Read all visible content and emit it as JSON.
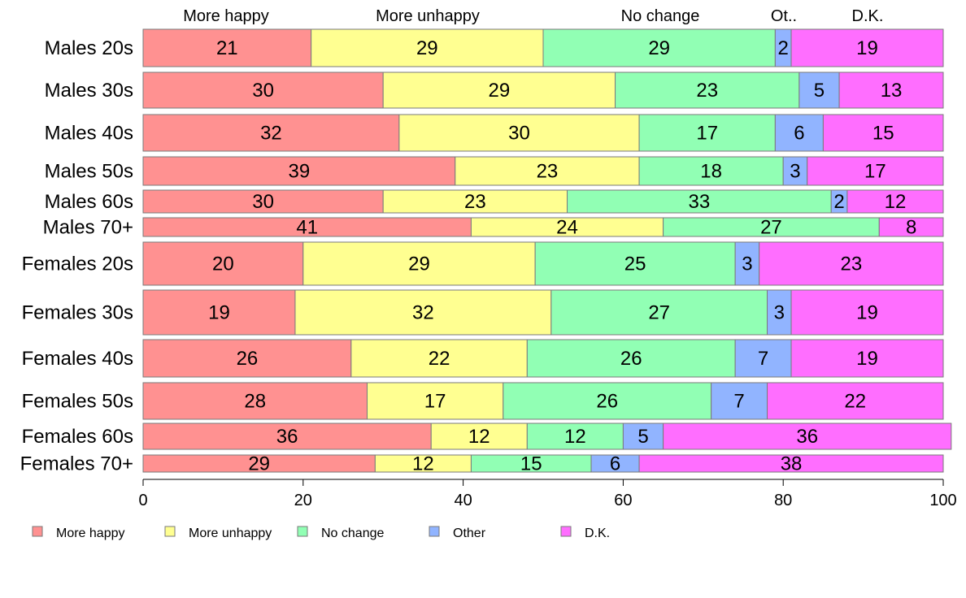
{
  "chart_data": {
    "type": "bar",
    "orientation": "horizontal",
    "stacked": true,
    "normalized_to": 100,
    "categories": [
      "Males 20s",
      "Males 30s",
      "Males 40s",
      "Males 50s",
      "Males 60s",
      "Males 70+",
      "Females 20s",
      "Females 30s",
      "Females 40s",
      "Females 50s",
      "Females 60s",
      "Females 70+"
    ],
    "series": [
      {
        "name": "More happy",
        "color": "#ff9191",
        "values": [
          21,
          30,
          32,
          39,
          30,
          41,
          20,
          19,
          26,
          28,
          36,
          29
        ],
        "labels": [
          "21",
          "30",
          "32",
          "39",
          "30",
          "41",
          "20",
          "19",
          "26",
          "28",
          "36",
          "29"
        ]
      },
      {
        "name": "More unhappy",
        "color": "#ffff91",
        "values": [
          29,
          29,
          30,
          23,
          23,
          24,
          29,
          32,
          22,
          17,
          12,
          12
        ],
        "labels": [
          "29",
          "29",
          "30",
          "23",
          "23",
          "24",
          "29",
          "32",
          "22",
          "17",
          "12",
          "12"
        ]
      },
      {
        "name": "No change",
        "color": "#91ffb4",
        "values": [
          29,
          23,
          17,
          18,
          33,
          27,
          25,
          27,
          26,
          26,
          12,
          15
        ],
        "labels": [
          "29",
          "23",
          "17",
          "18",
          "33",
          "27",
          "25",
          "27",
          "26",
          "26",
          "12",
          "15"
        ]
      },
      {
        "name": "Other",
        "color": "#91b4ff",
        "values": [
          2,
          5,
          6,
          3,
          2,
          0,
          3,
          3,
          7,
          7,
          5,
          6
        ],
        "labels": [
          "2",
          "5",
          "6",
          "3",
          "2",
          "",
          "3",
          "3",
          "7",
          "7",
          "5",
          "6"
        ]
      },
      {
        "name": "D.K.",
        "color": "#ff6eff",
        "values": [
          19,
          13,
          15,
          17,
          12,
          8,
          23,
          19,
          19,
          22,
          36,
          38
        ],
        "labels": [
          "19",
          "13",
          "15",
          "17",
          "12",
          "8",
          "23",
          "19",
          "19",
          "22",
          "36",
          "38"
        ]
      }
    ],
    "top_labels": [
      "More happy",
      "More unhappy",
      "No change",
      "Ot..",
      "D.K."
    ],
    "xlim": [
      0,
      100
    ],
    "xticks": [
      "0",
      "20",
      "40",
      "60",
      "80",
      "100"
    ],
    "grid": false,
    "legend_position": "bottom"
  }
}
